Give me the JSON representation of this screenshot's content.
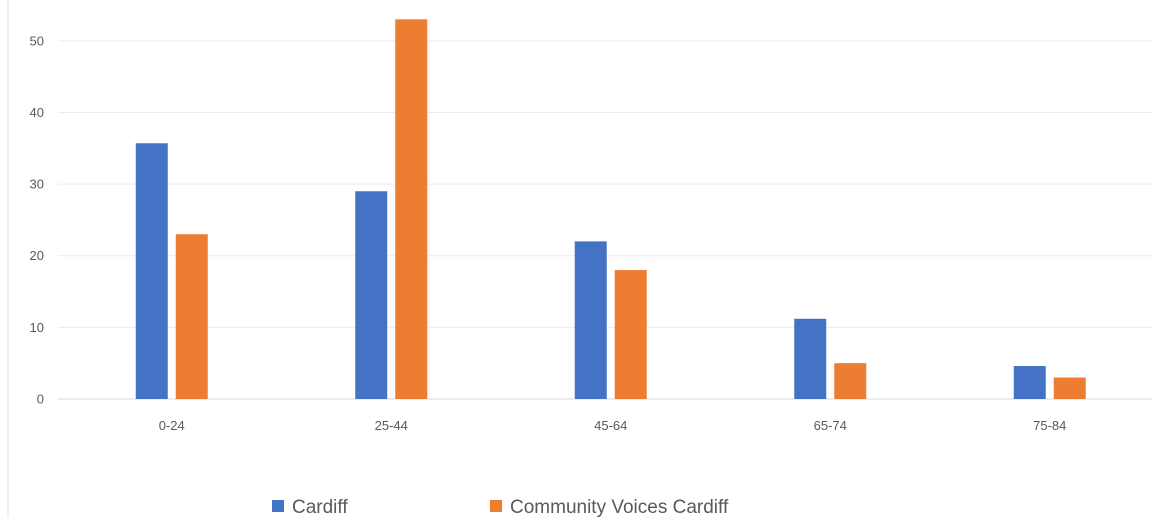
{
  "chart_data": {
    "type": "bar",
    "title": "",
    "xlabel": "",
    "ylabel": "",
    "categories": [
      "0-24",
      "25-44",
      "45-64",
      "65-74",
      "75-84"
    ],
    "series": [
      {
        "name": "Cardiff",
        "values": [
          35.7,
          29,
          22,
          11.2,
          4.6
        ],
        "color": "#4472C4"
      },
      {
        "name": "Community Voices Cardiff",
        "values": [
          23,
          53,
          18,
          5,
          3
        ],
        "color": "#ED7D31"
      }
    ],
    "ylim": [
      0,
      55
    ],
    "yticks": [
      0,
      10,
      20,
      30,
      40,
      50
    ],
    "grid": true,
    "legend": "bottom"
  }
}
